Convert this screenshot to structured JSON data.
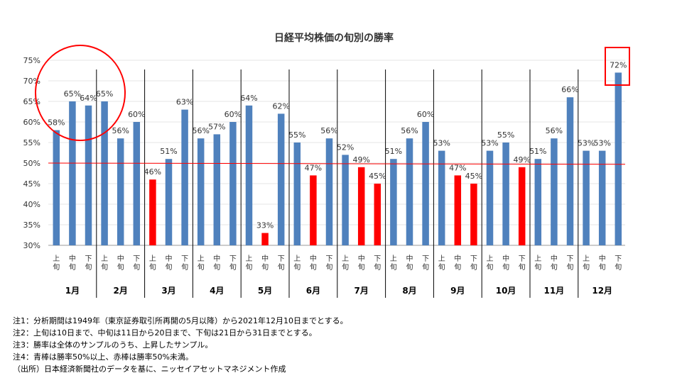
{
  "chart_data": {
    "type": "bar",
    "title": "日経平均株価の旬別の勝率",
    "ylim": [
      30,
      75
    ],
    "yticks": [
      30,
      35,
      40,
      45,
      50,
      55,
      60,
      65,
      70,
      75
    ],
    "ytick_labels": [
      "30%",
      "35%",
      "40%",
      "45%",
      "50%",
      "55%",
      "60%",
      "65%",
      "70%",
      "75%"
    ],
    "reference_line": 50,
    "months": [
      "1月",
      "2月",
      "3月",
      "4月",
      "5月",
      "6月",
      "7月",
      "8月",
      "9月",
      "10月",
      "11月",
      "12月"
    ],
    "periods": [
      "上旬",
      "中旬",
      "下旬"
    ],
    "values": [
      58,
      65,
      64,
      65,
      56,
      60,
      46,
      51,
      63,
      56,
      57,
      60,
      64,
      33,
      62,
      55,
      47,
      56,
      52,
      49,
      45,
      51,
      56,
      60,
      53,
      47,
      45,
      53,
      55,
      49,
      51,
      56,
      66,
      53,
      53,
      72
    ],
    "labels": [
      "58%",
      "65%",
      "64%",
      "65%",
      "56%",
      "60%",
      "46%",
      "51%",
      "63%",
      "56%",
      "57%",
      "60%",
      "64%",
      "33%",
      "62%",
      "55%",
      "47%",
      "56%",
      "52%",
      "49%",
      "45%",
      "51%",
      "56%",
      "60%",
      "53%",
      "47%",
      "45%",
      "53%",
      "55%",
      "49%",
      "51%",
      "56%",
      "66%",
      "53%",
      "53%",
      "72%"
    ],
    "colors": {
      "above": "#4f81bd",
      "below": "#ff0000",
      "reference": "#ff0000"
    },
    "highlights": [
      "1月上旬〜2月上旬 (circle)",
      "12月下旬 (box)"
    ]
  },
  "notes": [
    "注1：分析期間は1949年（東京証券取引所再開の5月以降）から2021年12月10日までとする。",
    "注2：上旬は10日まで、中旬は11日から20日まで、下旬は21日から31日までとする。",
    "注3：勝率は全体のサンプルのうち、上昇したサンプル。",
    "注4：青棒は勝率50%以上、赤棒は勝率50%未満。",
    "（出所）日本経済新聞社のデータを基に、ニッセイアセットマネジメント作成"
  ]
}
